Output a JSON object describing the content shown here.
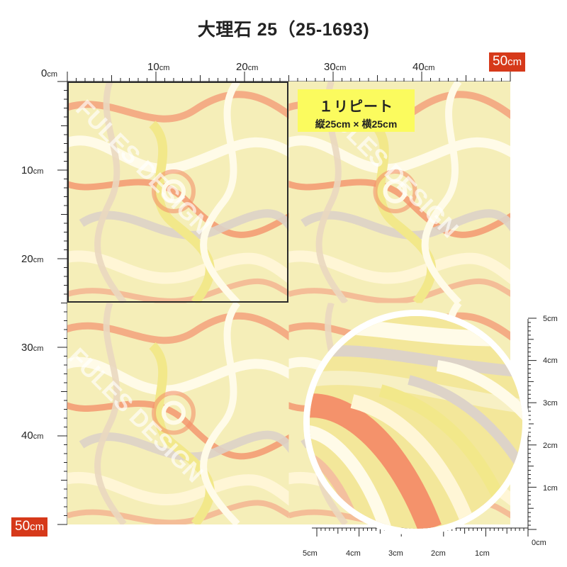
{
  "title": "大理石 25（25-1693)",
  "top_ruler": [
    {
      "num": "0",
      "unit": "cm"
    },
    {
      "num": "10",
      "unit": "cm"
    },
    {
      "num": "20",
      "unit": "cm"
    },
    {
      "num": "30",
      "unit": "cm"
    },
    {
      "num": "40",
      "unit": "cm"
    }
  ],
  "top_end_badge": {
    "num": "50",
    "unit": "cm"
  },
  "left_ruler": [
    {
      "num": "10",
      "unit": "cm"
    },
    {
      "num": "20",
      "unit": "cm"
    },
    {
      "num": "30",
      "unit": "cm"
    },
    {
      "num": "40",
      "unit": "cm"
    }
  ],
  "left_end_badge": {
    "num": "50",
    "unit": "cm"
  },
  "repeat_label": {
    "line1": "１リピート",
    "line2": "縦25cm × 横25cm"
  },
  "watermark": "FULES DESIGN",
  "small_ruler_right": [
    "5cm",
    "4cm",
    "3cm",
    "2cm",
    "1cm"
  ],
  "small_ruler_bottom": [
    "5cm",
    "4cm",
    "3cm",
    "2cm",
    "1cm",
    "0cm"
  ],
  "colors": {
    "badge": "#d6391a",
    "repeat_label_bg": "#fbfb5e",
    "coral": "#f4926b",
    "cream": "#fff6d6",
    "yellow": "#f2e88a",
    "grey": "#ddd3c8"
  }
}
